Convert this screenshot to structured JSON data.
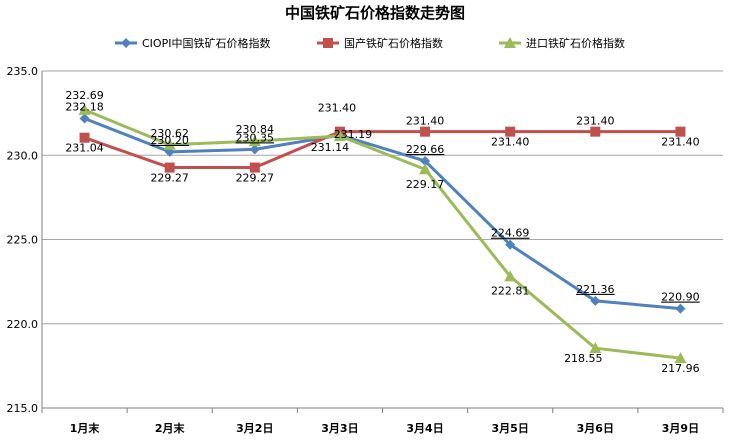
{
  "chart_data": {
    "type": "line",
    "title": "中国铁矿石价格指数走势图",
    "categories": [
      "1月末",
      "2月末",
      "3月2日",
      "3月3日",
      "3月4日",
      "3月5日",
      "3月6日",
      "3月9日"
    ],
    "ylim": [
      215.0,
      235.0
    ],
    "yticks": [
      "215.0",
      "220.0",
      "225.0",
      "230.0",
      "235.0"
    ],
    "grid": true,
    "legend_position": "top",
    "series": [
      {
        "name": "CIOPI中国铁矿石价格指数",
        "color": "#4F81BD",
        "marker": "diamond",
        "values": [
          232.18,
          230.2,
          230.35,
          231.19,
          229.66,
          224.69,
          221.36,
          220.9
        ],
        "labels": [
          "232.18",
          "230.20",
          "230.35",
          "231.19",
          "229.66",
          "224.69",
          "221.36",
          "220.90"
        ]
      },
      {
        "name": "国产铁矿石价格指数",
        "color": "#C0504D",
        "marker": "square",
        "values": [
          231.04,
          229.27,
          229.27,
          231.4,
          231.4,
          231.4,
          231.4,
          231.4
        ],
        "labels": [
          "231.04",
          "229.27",
          "229.27",
          "231.40",
          "231.40",
          "231.40",
          "231.40",
          "231.40"
        ]
      },
      {
        "name": "进口铁矿石价格指数",
        "color": "#9BBB59",
        "marker": "triangle",
        "values": [
          232.69,
          230.62,
          230.84,
          231.14,
          229.17,
          222.81,
          218.55,
          217.96
        ],
        "labels": [
          "232.69",
          "230.62",
          "230.84",
          "231.14",
          "229.17",
          "222.81",
          "218.55",
          "217.96"
        ]
      }
    ]
  }
}
